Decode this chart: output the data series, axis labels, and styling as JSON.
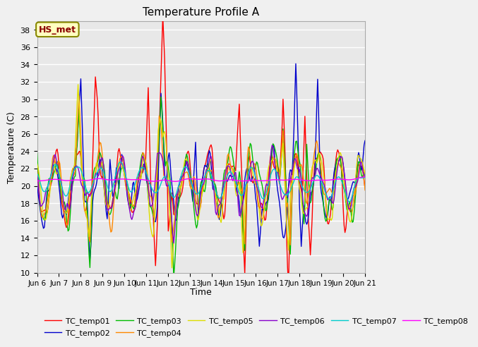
{
  "title": "Temperature Profile A",
  "xlabel": "Time",
  "ylabel": "Temperature (C)",
  "ylim": [
    10,
    39
  ],
  "yticks": [
    10,
    12,
    14,
    16,
    18,
    20,
    22,
    24,
    26,
    28,
    30,
    32,
    34,
    36,
    38
  ],
  "xlim": [
    0,
    360
  ],
  "fig_bg_color": "#f0f0f0",
  "plot_bg_color": "#e8e8e8",
  "grid_color": "#ffffff",
  "annotation_text": "HS_met",
  "annotation_bg": "#ffffc0",
  "annotation_border": "#888800",
  "annotation_text_color": "#8b0000",
  "series_colors": {
    "TC_temp01": "#ff0000",
    "TC_temp02": "#0000cc",
    "TC_temp03": "#00bb00",
    "TC_temp04": "#ff8800",
    "TC_temp05": "#dddd00",
    "TC_temp06": "#8800cc",
    "TC_temp07": "#00cccc",
    "TC_temp08": "#ff00ff"
  },
  "legend_order": [
    "TC_temp01",
    "TC_temp02",
    "TC_temp03",
    "TC_temp04",
    "TC_temp05",
    "TC_temp06",
    "TC_temp07",
    "TC_temp08"
  ],
  "xtick_labels": [
    "Jun 6",
    "Jun 7",
    "Jun 8",
    "Jun 9",
    "Jun 10",
    "Jun 11",
    "Jun 12",
    "Jun 13",
    "Jun 14",
    "Jun 15",
    "Jun 16",
    "Jun 17",
    "Jun 18",
    "Jun 19",
    "Jun 20",
    "Jun 21"
  ],
  "xtick_positions": [
    0,
    24,
    48,
    72,
    96,
    120,
    144,
    168,
    192,
    216,
    240,
    264,
    288,
    312,
    336,
    360
  ]
}
